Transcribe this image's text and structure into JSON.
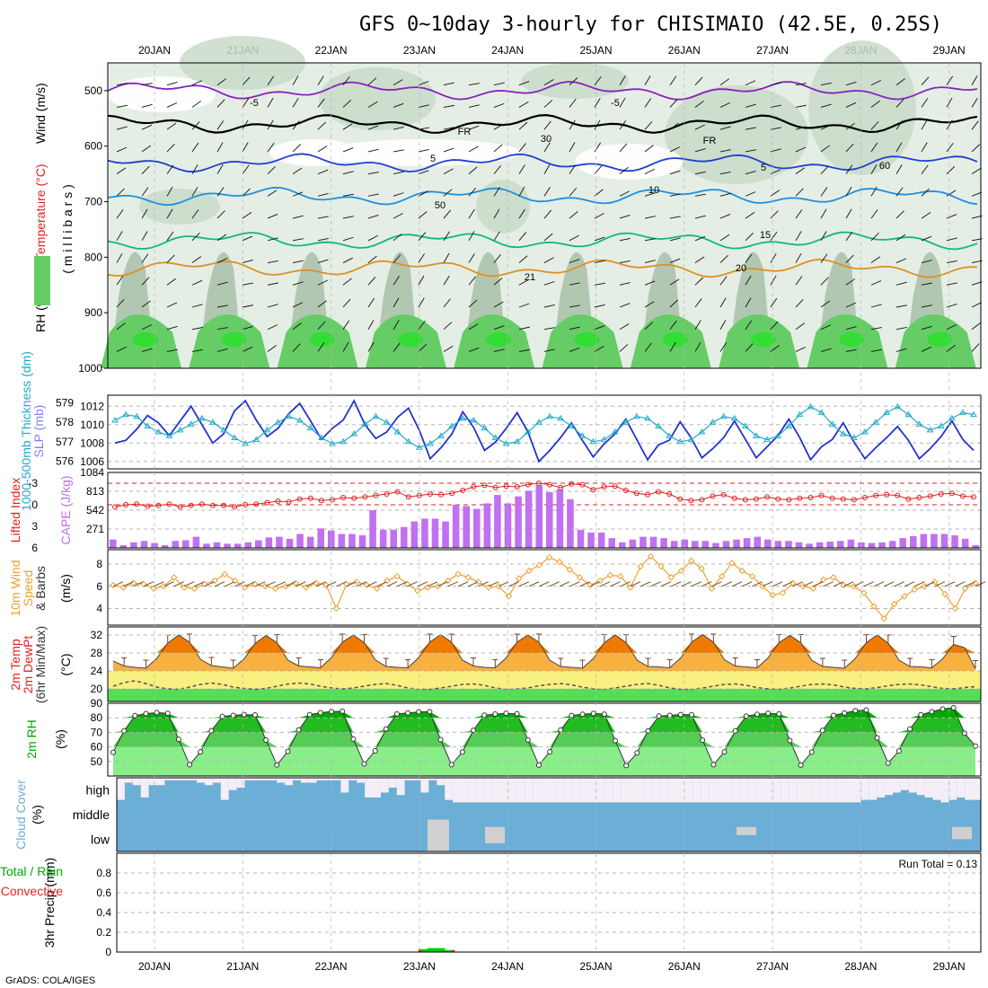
{
  "title": "GFS 0~10day 3-hourly for CHISIMAIO (42.5E, 0.25S)",
  "footer": "GrADS: COLA/IGES",
  "colors": {
    "rh_light": "#e4eee4",
    "rh_mid": "#c9dac9",
    "rh_dark": "#a9bfa9",
    "rh_green": "#66cc66",
    "rh_bright": "#33dd33",
    "wind_purple": "#8a20c0",
    "blue_dark": "#1f3fd0",
    "blue_light": "#1f8fe0",
    "teal": "#10b880",
    "orange": "#e09020",
    "fr_black": "#000000",
    "slp": "#2233cc",
    "thickness": "#22aacc",
    "cape": "#c070f0",
    "li": "#e02020",
    "wind10": "#f0a030",
    "barb": "#7a5a30",
    "temp_orange": "#f07a00",
    "temp_light": "#f8b040",
    "yellow": "#f8f080",
    "green_band": "#55dd55",
    "rh2m_dark": "#00aa00",
    "rh2m_light": "#88ee88",
    "cloud_blue": "#6baed6",
    "cloud_white": "#f4eef6",
    "cloud_gray": "#d0d0d0",
    "precip_green": "#00cc00",
    "precip_red": "#ee2222"
  },
  "chart_data": [
    {
      "panel": "upper_air",
      "type": "heatmap",
      "ylabel_rh": "RH (%)",
      "ylabel_temp": "Temperature (°C)",
      "ylabel_wind": "Wind (m/s)",
      "ylabel_unit": "( m i l l i b a r s )",
      "x_categories": [
        "20JAN",
        "21JAN",
        "22JAN",
        "23JAN",
        "24JAN",
        "25JAN",
        "26JAN",
        "27JAN",
        "28JAN",
        "29JAN"
      ],
      "y_ticks": [
        500,
        600,
        700,
        800,
        900,
        1000
      ],
      "ylim": [
        1000,
        450
      ],
      "contour_labels": [
        "-5",
        "-5",
        "5",
        "5",
        "10",
        "15",
        "20",
        "21",
        "FR",
        "FR",
        "30",
        "50",
        "60"
      ],
      "isotherms": [
        {
          "name": "-5",
          "level_mb": 500,
          "color": "purple"
        },
        {
          "name": "FR",
          "level_mb": 560,
          "color": "black"
        },
        {
          "name": "5",
          "level_mb": 630,
          "color": "blue"
        },
        {
          "name": "10",
          "level_mb": 690,
          "color": "lightblue"
        },
        {
          "name": "15",
          "level_mb": 770,
          "color": "teal"
        },
        {
          "name": "20",
          "level_mb": 820,
          "color": "orange"
        }
      ]
    },
    {
      "panel": "slp_thickness",
      "type": "line",
      "ylabel_left": "1000-500mb Thickness (dm)",
      "ylabel_right": "SLP (mb)",
      "thickness_ticks": [
        576,
        577,
        578,
        579
      ],
      "slp_ticks": [
        1006,
        1008,
        1010,
        1012
      ],
      "thickness_ylim": [
        575.6,
        579.4
      ],
      "slp_ylim": [
        1005.2,
        1013.2
      ],
      "slp": [
        1008,
        1008.3,
        1009.5,
        1011,
        1010.2,
        1008.8,
        1010.4,
        1012,
        1010,
        1008,
        1009,
        1011.5,
        1012.6,
        1010.5,
        1008.7,
        1009.6,
        1011.2,
        1012.3,
        1010.4,
        1008.4,
        1009.6,
        1010.5,
        1012.6,
        1010,
        1008.5,
        1009.2,
        1010.8,
        1011.8,
        1009.4,
        1006.3,
        1007.5,
        1009,
        1011.4,
        1009.7,
        1007.2,
        1008.1,
        1009.6,
        1011.3,
        1009.2,
        1006,
        1007.2,
        1008.6,
        1010.2,
        1008.3,
        1006.5,
        1007.9,
        1009,
        1010.6,
        1008.4,
        1006.2,
        1007.8,
        1008.3,
        1010.3,
        1008.6,
        1006.4,
        1007.4,
        1008.6,
        1010.4,
        1008.4,
        1006.4,
        1007.6,
        1008.8,
        1010.6,
        1008.6,
        1006.2,
        1007.6,
        1008.4,
        1010.2,
        1008.1,
        1006.3,
        1007.5,
        1008.6,
        1009.8,
        1008.3,
        1006.3,
        1007.4,
        1008.7,
        1010.4,
        1008.4,
        1007.2
      ],
      "thickness": [
        578.1,
        578.4,
        578.3,
        577.8,
        577.5,
        577.3,
        577.6,
        577.9,
        578.2,
        578.0,
        577.6,
        577.2,
        576.9,
        577.1,
        577.6,
        578.0,
        578.3,
        578.1,
        577.7,
        577.2,
        576.9,
        577.0,
        577.4,
        577.9,
        578.3,
        578.0,
        577.5,
        577.0,
        576.7,
        576.9,
        577.3,
        577.8,
        578.2,
        578.1,
        577.7,
        577.2,
        576.9,
        577.0,
        577.5,
        578.0,
        578.3,
        578.2,
        577.8,
        577.3,
        577.0,
        577.1,
        577.5,
        578.0,
        578.3,
        578.2,
        577.8,
        577.3,
        577.0,
        577.1,
        577.5,
        578.0,
        578.3,
        578.2,
        577.8,
        577.3,
        577.1,
        577.3,
        577.8,
        578.4,
        578.8,
        578.5,
        577.9,
        577.4,
        577.2,
        577.5,
        578.0,
        578.5,
        578.8,
        578.4,
        577.9,
        577.6,
        577.8,
        578.2,
        578.5,
        578.4
      ]
    },
    {
      "panel": "cape_li",
      "type": "bar",
      "ylabel_left": "Lifted Index",
      "ylabel_right": "CAPE (J/kg)",
      "li_ticks": [
        -3,
        0,
        3,
        6
      ],
      "li_ylim": [
        6,
        -4.5
      ],
      "cape_ticks": [
        271,
        542,
        813,
        1084
      ],
      "cape_ylim": [
        0,
        1084
      ],
      "cape": [
        120,
        40,
        80,
        100,
        70,
        40,
        100,
        110,
        160,
        60,
        80,
        60,
        60,
        80,
        110,
        150,
        160,
        130,
        200,
        160,
        280,
        250,
        200,
        200,
        180,
        540,
        260,
        260,
        300,
        380,
        420,
        420,
        380,
        620,
        600,
        560,
        640,
        760,
        640,
        740,
        820,
        900,
        800,
        840,
        700,
        260,
        220,
        220,
        140,
        80,
        120,
        160,
        160,
        140,
        100,
        120,
        100,
        100,
        70,
        100,
        120,
        140,
        160,
        120,
        100,
        100,
        80,
        60,
        80,
        90,
        100,
        120,
        80,
        70,
        80,
        100,
        140,
        170,
        200,
        200,
        200,
        180,
        130,
        40
      ],
      "li": [
        0.3,
        0.0,
        -0.1,
        0.2,
        0.1,
        -0.1,
        0.3,
        0.1,
        -0.1,
        0.1,
        0.1,
        0.3,
        0.0,
        -0.1,
        -0.3,
        -0.5,
        -0.4,
        -0.8,
        -0.9,
        -0.6,
        -0.7,
        -1.0,
        -0.9,
        -1.1,
        -1.3,
        -1.5,
        -1.8,
        -1.1,
        -1.3,
        -1.5,
        -1.4,
        -1.6,
        -2.0,
        -2.5,
        -2.7,
        -2.4,
        -2.6,
        -2.5,
        -2.8,
        -3.0,
        -2.8,
        -2.4,
        -2.9,
        -2.8,
        -2.1,
        -2.5,
        -2.6,
        -2.0,
        -1.6,
        -1.4,
        -1.8,
        -1.5,
        -0.8,
        -0.6,
        -0.7,
        -1.2,
        -1.4,
        -0.9,
        -0.7,
        -0.8,
        -1.1,
        -0.8,
        -0.7,
        -0.9,
        -1.0,
        -1.3,
        -0.9,
        -0.8,
        -0.7,
        -1.0,
        -1.3,
        -1.4,
        -1.3,
        -0.8,
        -1.0,
        -1.2,
        -1.5,
        -1.6,
        -1.2,
        -1.1
      ]
    },
    {
      "panel": "wind10m",
      "type": "line",
      "ylabel": "10m Wind Speed & Barbs (m/s)",
      "ylabel_a": "10m Wind",
      "ylabel_b": "Speed",
      "ylabel_c": "& Barbs",
      "ticks": [
        4,
        6,
        8
      ],
      "ylim": [
        2.5,
        9.3
      ],
      "speed": [
        6.1,
        5.9,
        6.3,
        6.2,
        5.8,
        6.0,
        6.8,
        5.9,
        5.8,
        6.2,
        6.5,
        7.1,
        6.5,
        5.9,
        6.2,
        6.0,
        5.8,
        6.0,
        6.3,
        5.9,
        6.3,
        6.1,
        4.0,
        6.2,
        6.4,
        6.1,
        5.8,
        6.5,
        6.9,
        6.2,
        5.6,
        5.9,
        6.0,
        6.5,
        7.1,
        6.8,
        6.4,
        5.9,
        6.0,
        5.1,
        6.7,
        7.4,
        7.9,
        8.6,
        8.2,
        7.5,
        6.8,
        6.1,
        6.5,
        7.0,
        6.9,
        5.9,
        7.8,
        8.7,
        7.8,
        6.8,
        7.4,
        8.3,
        7.6,
        5.8,
        6.9,
        8.1,
        7.4,
        6.9,
        6.0,
        5.2,
        5.4,
        6.3,
        6.0,
        5.8,
        6.6,
        6.8,
        6.1,
        6.0,
        5.4,
        4.2,
        3.1,
        4.4,
        5.1,
        5.7,
        6.0,
        6.4,
        5.3,
        4.0,
        5.8,
        6.3
      ]
    },
    {
      "panel": "temp2m",
      "type": "area",
      "ylabel_a": "2m Temp",
      "ylabel_b": "2m DewPt",
      "ylabel_c": "(6hr Min/Max)",
      "unit": "(°C)",
      "ticks": [
        20,
        24,
        28,
        32
      ],
      "ylim": [
        17.2,
        33.8
      ],
      "temp": [
        26.2,
        25.1,
        24.8,
        24.6,
        26.8,
        30.2,
        32.0,
        30.4,
        26.6,
        25.2,
        24.9,
        24.6,
        26.7,
        30.1,
        31.9,
        30.3,
        26.4,
        25.1,
        24.9,
        24.7,
        27.0,
        30.4,
        32.0,
        30.3,
        26.5,
        25.0,
        24.8,
        24.7,
        27.0,
        30.4,
        32.1,
        30.4,
        26.4,
        25.1,
        24.8,
        24.7,
        26.9,
        30.4,
        32.0,
        30.4,
        26.4,
        25.0,
        24.8,
        24.6,
        26.8,
        30.3,
        32.0,
        30.3,
        26.4,
        25.0,
        24.9,
        24.7,
        26.9,
        30.4,
        32.1,
        30.4,
        26.5,
        25.1,
        24.9,
        24.7,
        26.9,
        30.3,
        31.9,
        30.3,
        26.4,
        25.0,
        24.8,
        24.6,
        26.8,
        30.3,
        32.0,
        30.2,
        26.4,
        25.0,
        24.9,
        24.7,
        26.7,
        29.9,
        29.2,
        24.5
      ],
      "dewpoint": [
        20.6,
        21.4,
        21.8,
        21.2,
        20.4,
        20.0,
        19.9,
        20.4,
        21.0,
        21.3,
        21.0,
        20.4,
        20.1,
        19.9,
        20.1,
        20.6,
        21.1,
        21.3,
        21.1,
        20.6,
        20.2,
        20.0,
        20.2,
        20.6,
        21.0,
        21.2,
        20.8,
        20.2,
        19.9,
        19.9,
        20.2,
        20.6,
        21.0,
        21.1,
        20.8,
        20.2,
        19.9,
        20.0,
        20.2,
        20.7,
        21.0,
        21.2,
        20.9,
        20.4,
        20.0,
        19.9,
        20.2,
        20.6,
        21.0,
        21.2,
        20.8,
        20.2,
        19.9,
        19.9,
        20.2,
        20.6,
        21.0,
        21.1,
        20.8,
        20.3,
        20.0,
        19.9,
        20.2,
        20.6,
        21.0,
        21.1,
        20.9,
        20.4,
        20.1,
        20.0,
        20.3,
        20.7,
        21.0,
        21.1,
        20.9,
        20.5,
        20.1,
        20.0,
        20.3,
        20.5
      ]
    },
    {
      "panel": "rh2m",
      "type": "area",
      "ylabel": "2m RH",
      "unit": "(%)",
      "ticks": [
        50,
        60,
        70,
        80,
        90
      ],
      "ylim": [
        40,
        90
      ],
      "rh": [
        56.3,
        71.1,
        81.5,
        82.9,
        83.6,
        83.1,
        65.2,
        47.8,
        56.6,
        71.2,
        81.0,
        81.7,
        82.2,
        82.0,
        64.7,
        47.6,
        56.9,
        71.7,
        82.2,
        83.5,
        84.3,
        84.5,
        65.4,
        48.3,
        57.3,
        72.3,
        82.7,
        83.4,
        84.1,
        84.2,
        65.0,
        47.8,
        56.5,
        71.4,
        81.8,
        82.6,
        83.1,
        82.8,
        64.8,
        47.5,
        56.7,
        71.6,
        81.6,
        82.4,
        83.0,
        82.5,
        64.3,
        47.2,
        55.9,
        71.0,
        81.2,
        81.7,
        82.2,
        82.1,
        64.6,
        47.8,
        56.6,
        71.1,
        81.2,
        82.4,
        83.1,
        82.7,
        64.4,
        47.5,
        56.4,
        71.4,
        81.7,
        83.3,
        84.9,
        85.4,
        66.2,
        48.9,
        57.2,
        72.3,
        82.1,
        84.2,
        86.1,
        86.9,
        69.5,
        60.6
      ]
    },
    {
      "panel": "cloud_cover",
      "type": "heatmap",
      "ylabel": "Cloud Cover (%)",
      "ylabel_a": "Cloud Cover",
      "unit": "(%)",
      "labels": [
        "high",
        "middle",
        "low"
      ],
      "high": [
        10,
        80,
        70,
        20,
        70,
        70,
        90,
        90,
        90,
        90,
        80,
        70,
        80,
        10,
        50,
        60,
        90,
        90,
        90,
        90,
        80,
        70,
        90,
        80,
        80,
        90,
        90,
        90,
        40,
        90,
        80,
        20,
        20,
        40,
        60,
        30,
        90,
        90,
        40,
        90,
        70,
        10,
        0,
        0,
        0,
        0,
        0,
        0,
        0,
        0,
        0,
        0,
        0,
        0,
        0,
        0,
        0,
        0,
        0,
        0,
        0,
        0,
        0,
        0,
        0,
        0,
        0,
        0,
        0,
        0,
        0,
        0,
        0,
        0,
        0,
        0,
        0,
        0,
        0,
        0,
        0,
        0,
        0,
        0,
        0,
        0,
        0,
        0,
        0,
        0,
        0,
        0,
        0,
        10,
        10,
        20,
        30,
        40,
        50,
        40,
        30,
        20,
        10,
        0,
        10,
        20,
        10,
        10
      ]
    },
    {
      "panel": "precip",
      "type": "bar",
      "ylabel": "3hr Precip (mm)",
      "ylabel_a": "3hr Precip (mm)",
      "legend_total": "Total / Rain",
      "legend_conv": "Convective",
      "run_total": "Run Total = 0.13",
      "ticks": [
        0,
        0.2,
        0.4,
        0.6,
        0.8
      ],
      "tick_labels": [
        "0",
        "0.2",
        "0.4",
        "0.6",
        "0.8"
      ],
      "ylim": [
        0,
        1.0
      ],
      "bars": [
        {
          "day_offset": 3.05,
          "total": 0.03
        },
        {
          "day_offset": 3.15,
          "total": 0.04
        },
        {
          "day_offset": 3.25,
          "total": 0.04
        },
        {
          "day_offset": 3.35,
          "total": 0.02
        }
      ]
    }
  ]
}
